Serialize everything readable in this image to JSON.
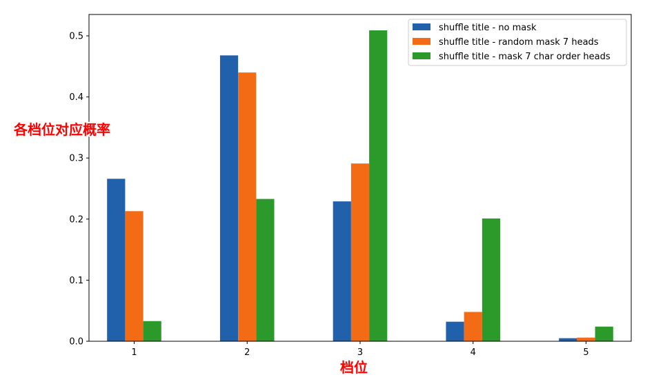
{
  "chart_data": {
    "type": "bar",
    "categories": [
      "1",
      "2",
      "3",
      "4",
      "5"
    ],
    "series": [
      {
        "name": "shuffle title - no mask",
        "color": "#2161ac",
        "values": [
          0.266,
          0.468,
          0.229,
          0.032,
          0.005
        ]
      },
      {
        "name": "shuffle title - random mask 7 heads",
        "color": "#f36b14",
        "values": [
          0.213,
          0.44,
          0.291,
          0.048,
          0.006
        ]
      },
      {
        "name": "shuffle title - mask 7 char order heads",
        "color": "#2b9a2b",
        "values": [
          0.033,
          0.233,
          0.509,
          0.201,
          0.024
        ]
      }
    ],
    "xlabel": "档位",
    "ylabel": "各档位对应概率",
    "ylim": [
      0,
      0.535
    ],
    "yticks": [
      "0.0",
      "0.1",
      "0.2",
      "0.3",
      "0.4",
      "0.5"
    ],
    "grid": false,
    "legend_position": "top-right",
    "label_color": "#ff0000"
  }
}
